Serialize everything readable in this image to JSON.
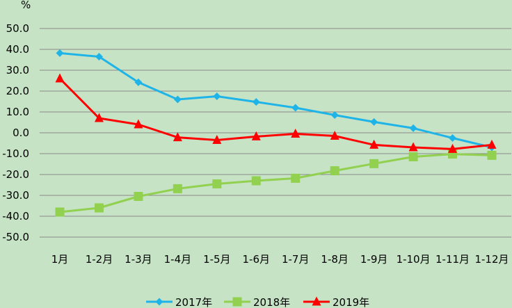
{
  "chart_data": {
    "type": "line",
    "title": "",
    "ylabel": "%",
    "xlabel": "",
    "ylim": [
      -50,
      50
    ],
    "ytick_step": 10,
    "ytick_labels": [
      "50.0",
      "40.0",
      "30.0",
      "20.0",
      "10.0",
      "0.0",
      "-10.0",
      "-20.0",
      "-30.0",
      "-40.0",
      "-50.0"
    ],
    "grid": true,
    "legend_position": "bottom",
    "categories": [
      "1月",
      "1-2月",
      "1-3月",
      "1-4月",
      "1-5月",
      "1-6月",
      "1-7月",
      "1-8月",
      "1-9月",
      "1-10月",
      "1-11月",
      "1-12月"
    ],
    "series": [
      {
        "name": "2017年",
        "color": "#1fb4e8",
        "marker": "diamond",
        "values": [
          38.2,
          36.5,
          24.2,
          16.0,
          17.5,
          14.8,
          12.0,
          8.5,
          5.2,
          2.2,
          -2.5,
          -7.0
        ]
      },
      {
        "name": "2018年",
        "color": "#92d050",
        "marker": "square",
        "values": [
          -38.0,
          -36.0,
          -30.5,
          -26.8,
          -24.5,
          -23.0,
          -21.8,
          -18.2,
          -14.8,
          -11.5,
          -10.2,
          -10.8
        ]
      },
      {
        "name": "2019年",
        "color": "#ff0000",
        "marker": "triangle",
        "values": [
          26.0,
          7.0,
          4.0,
          -2.2,
          -3.5,
          -1.8,
          -0.5,
          -1.5,
          -5.8,
          -7.0,
          -7.8,
          -5.8
        ]
      }
    ]
  }
}
